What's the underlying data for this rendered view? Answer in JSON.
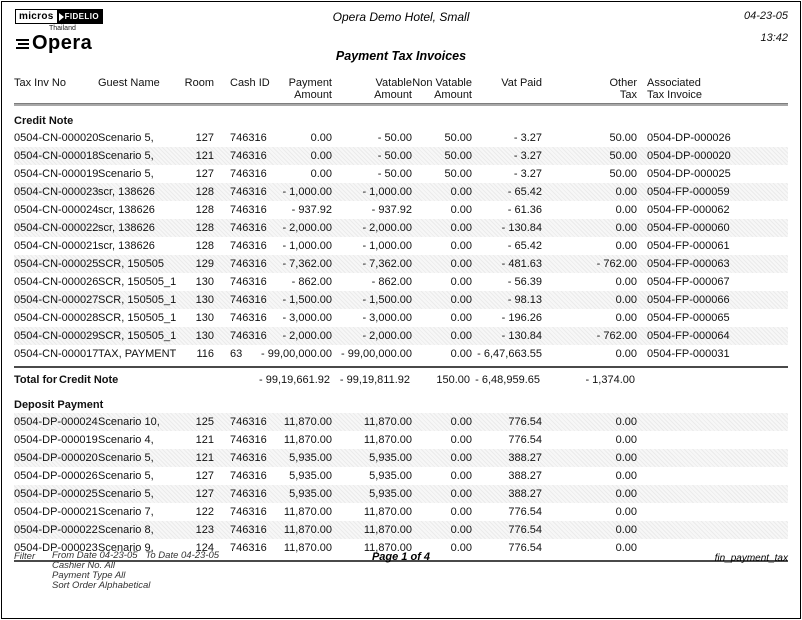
{
  "header": {
    "logo": {
      "micros": "micros",
      "fidelio": "FIDELIO",
      "thailand": "Thailand",
      "opera": "Opera"
    },
    "hotel_name": "Opera Demo Hotel, Small",
    "date": "04-23-05",
    "time": "13:42",
    "report_title": "Payment Tax Invoices"
  },
  "table": {
    "columns": [
      {
        "line1": "Tax Inv No",
        "line2": "",
        "align": "left"
      },
      {
        "line1": "Guest Name",
        "line2": "",
        "align": "left"
      },
      {
        "line1": "Room",
        "line2": "",
        "align": "right"
      },
      {
        "line1": "Cash ID",
        "line2": "",
        "align": "left"
      },
      {
        "line1": "Payment",
        "line2": "Amount",
        "align": "right"
      },
      {
        "line1": "Vatable",
        "line2": "Amount",
        "align": "right"
      },
      {
        "line1": "Non Vatable",
        "line2": "Amount",
        "align": "right"
      },
      {
        "line1": "Vat Paid",
        "line2": "",
        "align": "right"
      },
      {
        "line1": "Other",
        "line2": "Tax",
        "align": "right"
      },
      {
        "line1": "Associated",
        "line2": "Tax Invoice",
        "align": "left"
      }
    ],
    "sections": [
      {
        "name": "Credit Note",
        "rows": [
          {
            "shaded": false,
            "cells": [
              "0504-CN-000020",
              "Scenario 5,",
              "127",
              "746316",
              "0.00",
              "- 50.00",
              "50.00",
              "- 3.27",
              "50.00",
              "0504-DP-000026"
            ]
          },
          {
            "shaded": true,
            "cells": [
              "0504-CN-000018",
              "Scenario 5,",
              "121",
              "746316",
              "0.00",
              "- 50.00",
              "50.00",
              "- 3.27",
              "50.00",
              "0504-DP-000020"
            ]
          },
          {
            "shaded": false,
            "cells": [
              "0504-CN-000019",
              "Scenario 5,",
              "127",
              "746316",
              "0.00",
              "- 50.00",
              "50.00",
              "- 3.27",
              "50.00",
              "0504-DP-000025"
            ]
          },
          {
            "shaded": true,
            "cells": [
              "0504-CN-000023",
              "scr, 138626",
              "128",
              "746316",
              "- 1,000.00",
              "- 1,000.00",
              "0.00",
              "- 65.42",
              "0.00",
              "0504-FP-000059"
            ]
          },
          {
            "shaded": false,
            "cells": [
              "0504-CN-000024",
              "scr, 138626",
              "128",
              "746316",
              "- 937.92",
              "- 937.92",
              "0.00",
              "- 61.36",
              "0.00",
              "0504-FP-000062"
            ]
          },
          {
            "shaded": true,
            "cells": [
              "0504-CN-000022",
              "scr, 138626",
              "128",
              "746316",
              "- 2,000.00",
              "- 2,000.00",
              "0.00",
              "- 130.84",
              "0.00",
              "0504-FP-000060"
            ]
          },
          {
            "shaded": false,
            "cells": [
              "0504-CN-000021",
              "scr, 138626",
              "128",
              "746316",
              "- 1,000.00",
              "- 1,000.00",
              "0.00",
              "- 65.42",
              "0.00",
              "0504-FP-000061"
            ]
          },
          {
            "shaded": true,
            "cells": [
              "0504-CN-000025",
              "SCR, 150505",
              "129",
              "746316",
              "- 7,362.00",
              "- 7,362.00",
              "0.00",
              "- 481.63",
              "- 762.00",
              "0504-FP-000063"
            ]
          },
          {
            "shaded": false,
            "cells": [
              "0504-CN-000026",
              "SCR, 150505_1",
              "130",
              "746316",
              "- 862.00",
              "- 862.00",
              "0.00",
              "- 56.39",
              "0.00",
              "0504-FP-000067"
            ]
          },
          {
            "shaded": true,
            "cells": [
              "0504-CN-000027",
              "SCR, 150505_1",
              "130",
              "746316",
              "- 1,500.00",
              "- 1,500.00",
              "0.00",
              "- 98.13",
              "0.00",
              "0504-FP-000066"
            ]
          },
          {
            "shaded": false,
            "cells": [
              "0504-CN-000028",
              "SCR, 150505_1",
              "130",
              "746316",
              "- 3,000.00",
              "- 3,000.00",
              "0.00",
              "- 196.26",
              "0.00",
              "0504-FP-000065"
            ]
          },
          {
            "shaded": true,
            "cells": [
              "0504-CN-000029",
              "SCR, 150505_1",
              "130",
              "746316",
              "- 2,000.00",
              "- 2,000.00",
              "0.00",
              "- 130.84",
              "- 762.00",
              "0504-FP-000064"
            ]
          },
          {
            "shaded": false,
            "cells": [
              "0504-CN-000017",
              "TAX, PAYMENT",
              "116",
              "63",
              "- 99,00,000.00",
              "- 99,00,000.00",
              "0.00",
              "- 6,47,663.55",
              "0.00",
              "0504-FP-000031"
            ]
          }
        ],
        "total": {
          "label": "Total for",
          "section": "Credit Note",
          "payment_amount": "- 99,19,661.92",
          "vatable_amount": "- 99,19,811.92",
          "non_vatable_amount": "150.00",
          "vat_paid": "- 6,48,959.65",
          "other_tax": "- 1,374.00"
        }
      },
      {
        "name": "Deposit Payment",
        "rows": [
          {
            "shaded": true,
            "cells": [
              "0504-DP-000024",
              "Scenario 10,",
              "125",
              "746316",
              "11,870.00",
              "11,870.00",
              "0.00",
              "776.54",
              "0.00",
              ""
            ]
          },
          {
            "shaded": false,
            "cells": [
              "0504-DP-000019",
              "Scenario 4,",
              "121",
              "746316",
              "11,870.00",
              "11,870.00",
              "0.00",
              "776.54",
              "0.00",
              ""
            ]
          },
          {
            "shaded": true,
            "cells": [
              "0504-DP-000020",
              "Scenario 5,",
              "121",
              "746316",
              "5,935.00",
              "5,935.00",
              "0.00",
              "388.27",
              "0.00",
              ""
            ]
          },
          {
            "shaded": false,
            "cells": [
              "0504-DP-000026",
              "Scenario 5,",
              "127",
              "746316",
              "5,935.00",
              "5,935.00",
              "0.00",
              "388.27",
              "0.00",
              ""
            ]
          },
          {
            "shaded": true,
            "cells": [
              "0504-DP-000025",
              "Scenario 5,",
              "127",
              "746316",
              "5,935.00",
              "5,935.00",
              "0.00",
              "388.27",
              "0.00",
              ""
            ]
          },
          {
            "shaded": false,
            "cells": [
              "0504-DP-000021",
              "Scenario 7,",
              "122",
              "746316",
              "11,870.00",
              "11,870.00",
              "0.00",
              "776.54",
              "0.00",
              ""
            ]
          },
          {
            "shaded": true,
            "cells": [
              "0504-DP-000022",
              "Scenario 8,",
              "123",
              "746316",
              "11,870.00",
              "11,870.00",
              "0.00",
              "776.54",
              "0.00",
              ""
            ]
          },
          {
            "shaded": false,
            "cells": [
              "0504-DP-000023",
              "Scenario 9,",
              "124",
              "746316",
              "11,870.00",
              "11,870.00",
              "0.00",
              "776.54",
              "0.00",
              ""
            ]
          }
        ],
        "total": null
      }
    ]
  },
  "footer": {
    "filter_label": "Filter",
    "filter_lines": [
      "From Date 04-23-05   To Date 04-23-05",
      "Cashier No. All",
      "Payment Type All",
      "Sort Order Alphabetical"
    ],
    "page": "Page 1 of 4",
    "report_id": "fin_payment_tax"
  }
}
